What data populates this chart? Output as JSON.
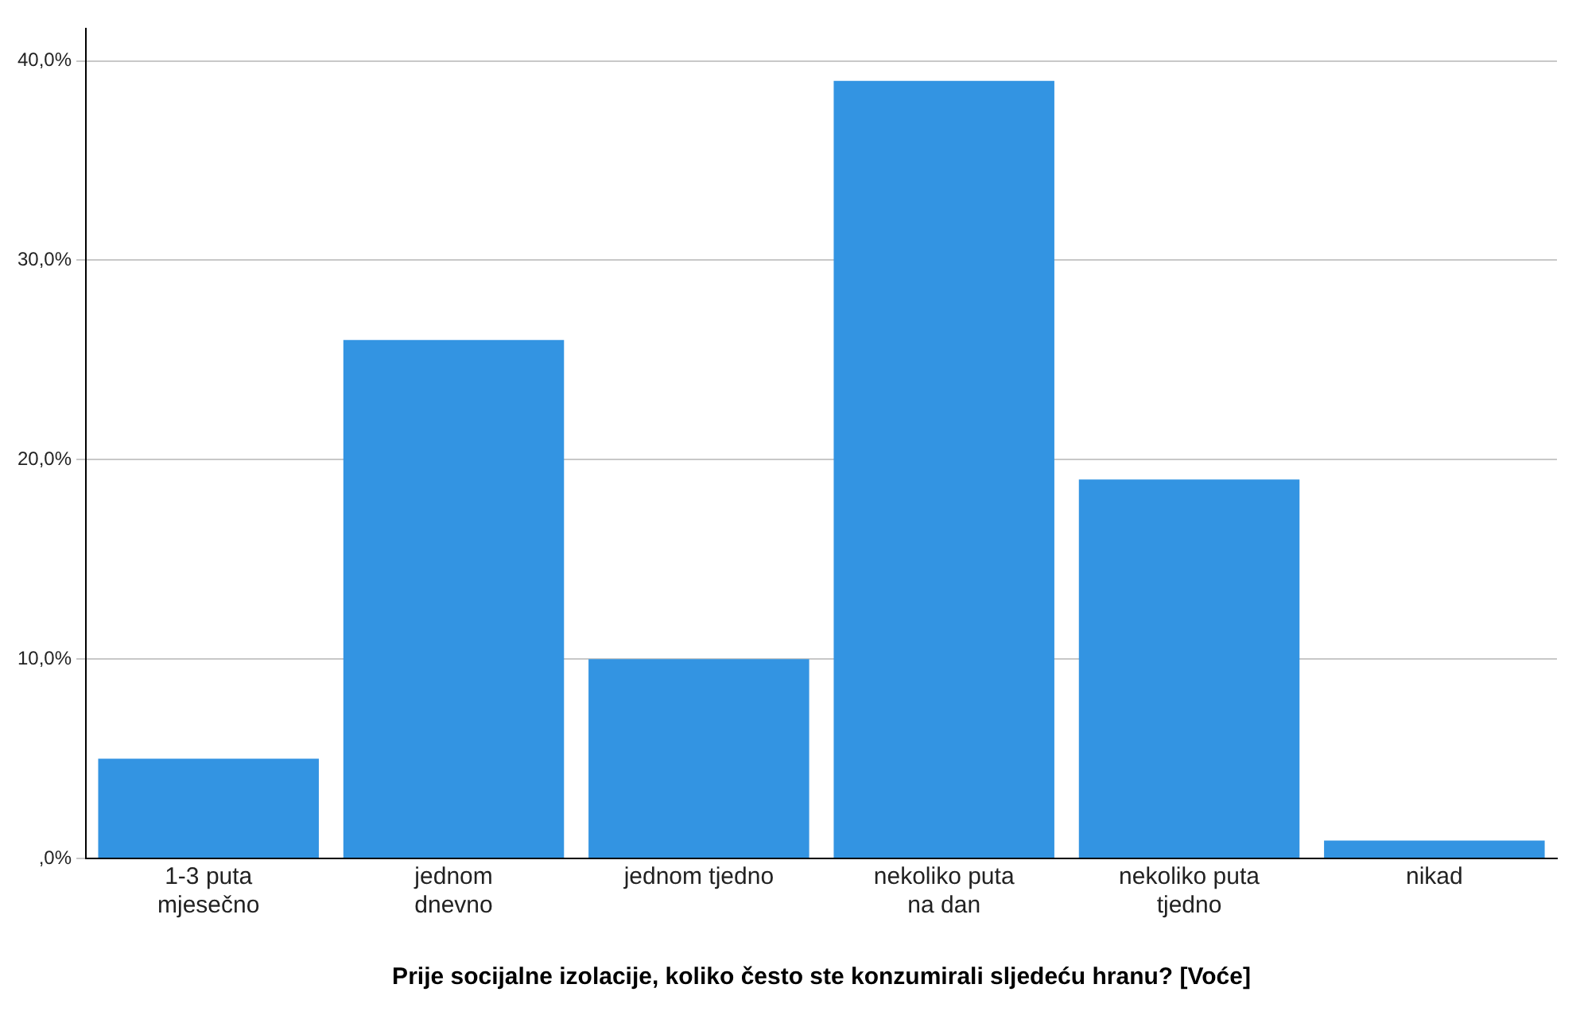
{
  "chart_data": {
    "type": "bar",
    "xlabel": "Prije socijalne izolacije, koliko često ste konzumirali sljedeću hranu? [Voće]",
    "categories": [
      [
        "1-3 puta",
        "mjesečno"
      ],
      [
        "jednom",
        "dnevno"
      ],
      "jednom tjedno",
      [
        "nekoliko puta",
        "na dan"
      ],
      [
        "nekoliko puta",
        "tjedno"
      ],
      "nikad"
    ],
    "values": [
      5.0,
      26.0,
      10.0,
      39.0,
      19.0,
      0.9
    ],
    "color": "#3394e2",
    "ylim": [
      0,
      41.6
    ],
    "yticks": [
      {
        "value": 0,
        "label": ",0%"
      },
      {
        "value": 10,
        "label": "10,0%"
      },
      {
        "value": 20,
        "label": "20,0%"
      },
      {
        "value": 30,
        "label": "30,0%"
      },
      {
        "value": 40,
        "label": "40,0%"
      }
    ],
    "grid": "y",
    "legend": false
  }
}
